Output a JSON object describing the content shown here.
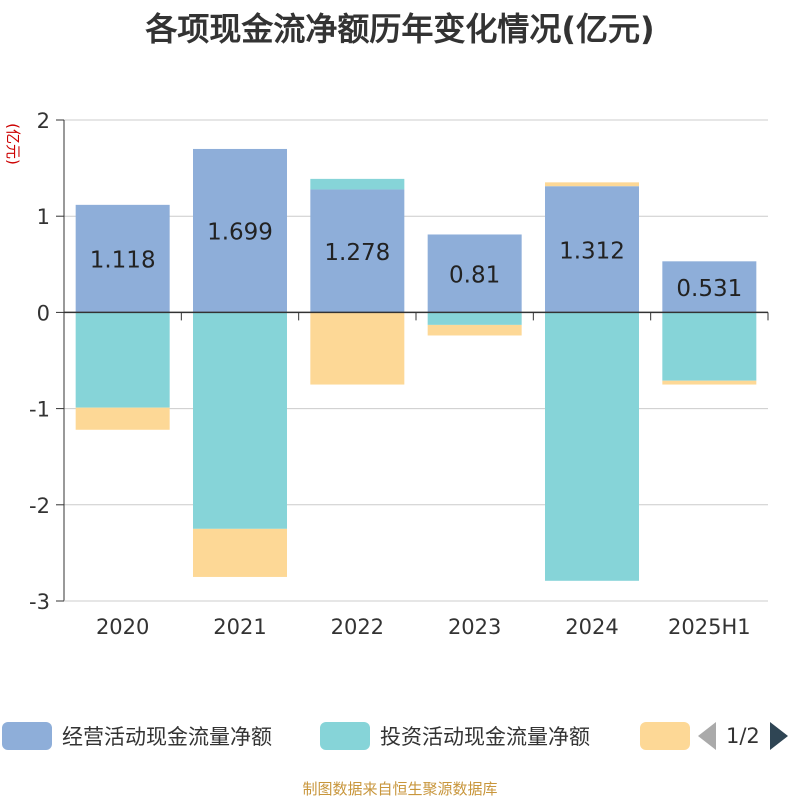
{
  "chart_data": {
    "type": "bar",
    "stacked": true,
    "title": "各项现金流净额历年变化情况(亿元)",
    "ylabel": "(亿元)",
    "ylim": [
      -3,
      2
    ],
    "yticks": [
      2,
      1,
      0,
      -1,
      -2,
      -3
    ],
    "categories": [
      "2020",
      "2021",
      "2022",
      "2023",
      "2024",
      "2025H1"
    ],
    "series": [
      {
        "name": "经营活动现金流量净额",
        "color": "#8eaed9",
        "values": [
          1.118,
          1.699,
          1.278,
          0.81,
          1.312,
          0.531
        ],
        "labels": [
          "1.118",
          "1.699",
          "1.278",
          "0.81",
          "1.312",
          "0.531"
        ]
      },
      {
        "name": "投资活动现金流量净额",
        "color": "#86d4d8",
        "values": [
          -0.99,
          -2.25,
          0.11,
          -0.13,
          -2.79,
          -0.71
        ]
      },
      {
        "color": "#fdd896",
        "values": [
          -0.23,
          -0.5,
          -0.75,
          -0.11,
          0.04,
          -0.04
        ]
      }
    ],
    "legend_position": "bottom",
    "grid": true
  },
  "legend": {
    "items": [
      "经营活动现金流量净额",
      "投资活动现金流量净额"
    ],
    "pager": "1/2"
  },
  "source": "制图数据来自恒生聚源数据库"
}
